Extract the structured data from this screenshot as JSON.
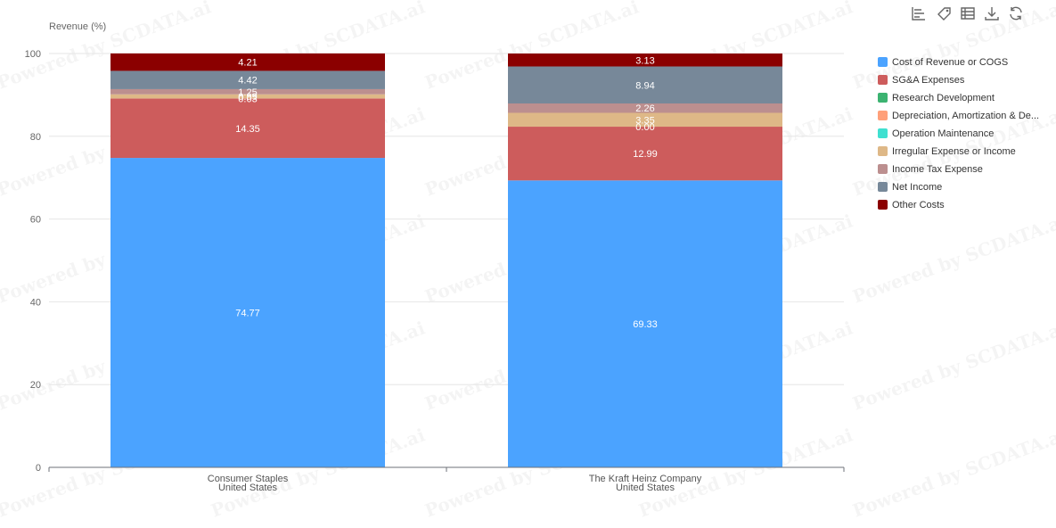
{
  "watermark_text": "Powered by SCDATA.ai",
  "toolbar": {
    "icons": [
      "bar-chart-icon",
      "tag-icon",
      "table-icon",
      "download-icon",
      "refresh-icon"
    ]
  },
  "chart_data": {
    "type": "bar",
    "stacked": true,
    "ylabel": "Revenue (%)",
    "ylim": [
      0,
      100
    ],
    "yticks": [
      0,
      20,
      40,
      60,
      80,
      100
    ],
    "categories": [
      [
        "Consumer Staples",
        "United States"
      ],
      [
        "The Kraft Heinz Company",
        "United States"
      ]
    ],
    "legend_position": "right",
    "grid": true,
    "series": [
      {
        "name": "Cost of Revenue or COGS",
        "color": "#4ba3ff",
        "values": [
          74.77,
          69.33
        ],
        "labels": [
          "74.77",
          "69.33"
        ]
      },
      {
        "name": "SG&A Expenses",
        "color": "#cd5c5c",
        "values": [
          14.35,
          12.99
        ],
        "labels": [
          "14.35",
          "12.99"
        ]
      },
      {
        "name": "Research Development",
        "color": "#3cb371",
        "values": [
          0,
          0
        ],
        "labels": [
          "",
          ""
        ]
      },
      {
        "name": "Depreciation, Amortization & De...",
        "color": "#ffa07a",
        "values": [
          0.03,
          0.0
        ],
        "labels": [
          "0.03",
          "0.00"
        ]
      },
      {
        "name": "Operation Maintenance",
        "color": "#40e0d0",
        "values": [
          0,
          0
        ],
        "labels": [
          "",
          ""
        ]
      },
      {
        "name": "Irregular Expense or Income",
        "color": "#deb887",
        "values": [
          0.99,
          3.35
        ],
        "labels": [
          "0.99",
          "3.35"
        ]
      },
      {
        "name": "Income Tax Expense",
        "color": "#bc8f8f",
        "values": [
          1.25,
          2.26
        ],
        "labels": [
          "1.25",
          "2.26"
        ]
      },
      {
        "name": "Net Income",
        "color": "#778899",
        "values": [
          4.42,
          8.94
        ],
        "labels": [
          "4.42",
          "8.94"
        ]
      },
      {
        "name": "Other Costs",
        "color": "#8b0000",
        "values": [
          4.21,
          3.13
        ],
        "labels": [
          "4.21",
          "3.13"
        ]
      }
    ]
  }
}
